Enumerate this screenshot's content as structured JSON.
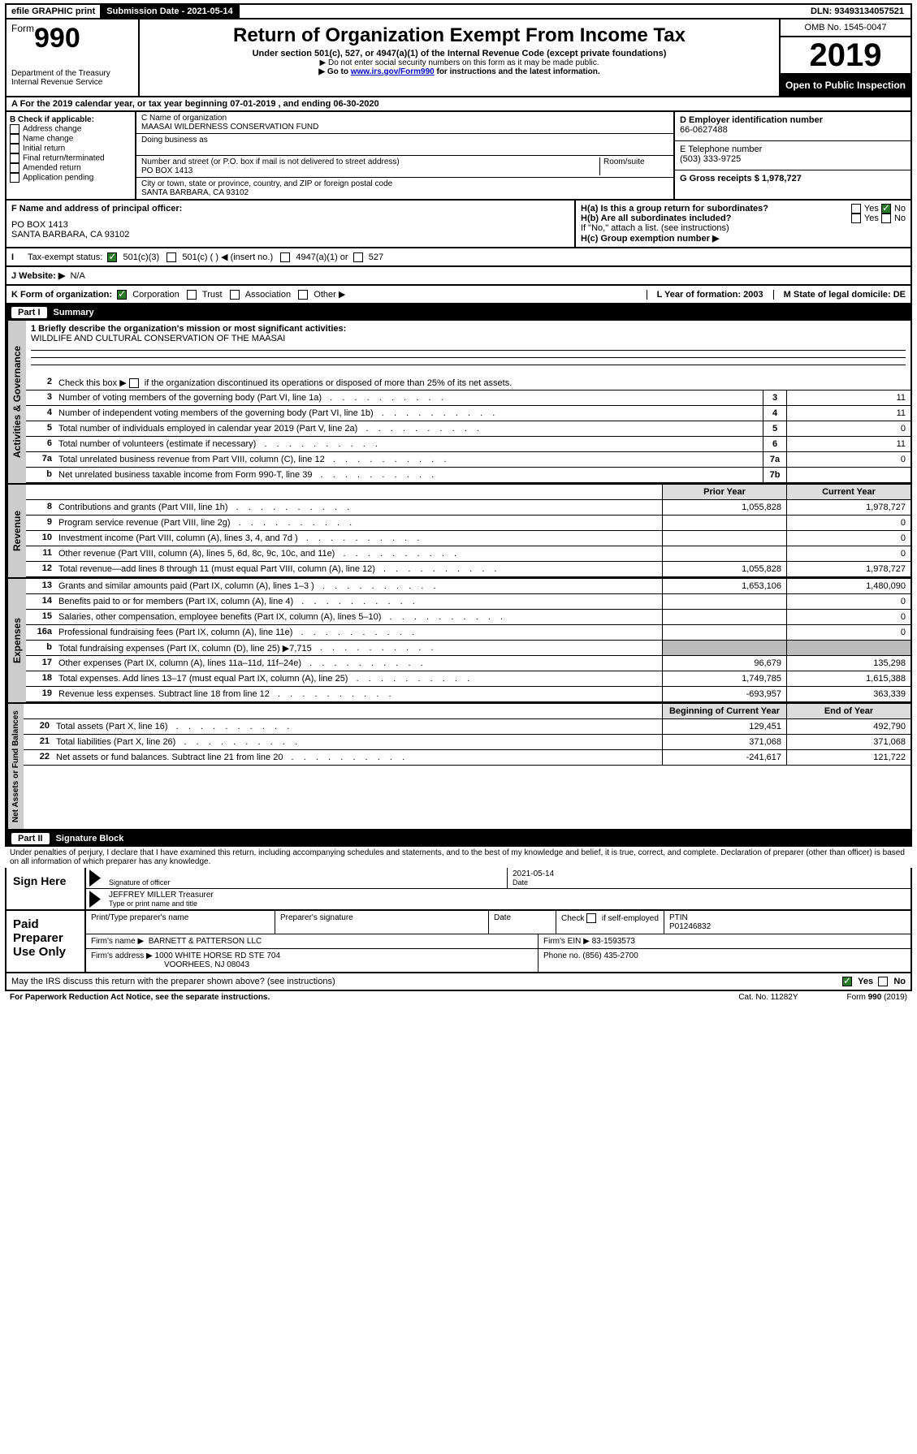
{
  "topbar": {
    "efile": "efile GRAPHIC print",
    "submission_label": "Submission Date - 2021-05-14",
    "dln": "DLN: 93493134057521"
  },
  "header": {
    "form_prefix": "Form",
    "form_number": "990",
    "dept": "Department of the Treasury",
    "irs": "Internal Revenue Service",
    "title": "Return of Organization Exempt From Income Tax",
    "subtitle": "Under section 501(c), 527, or 4947(a)(1) of the Internal Revenue Code (except private foundations)",
    "note1": "▶ Do not enter social security numbers on this form as it may be made public.",
    "note2_pre": "▶ Go to ",
    "note2_link": "www.irs.gov/Form990",
    "note2_post": " for instructions and the latest information.",
    "omb": "OMB No. 1545-0047",
    "year": "2019",
    "open": "Open to Public Inspection"
  },
  "row_a": "A For the 2019 calendar year, or tax year beginning 07-01-2019    , and ending 06-30-2020",
  "checkboxes_b": {
    "heading": "B Check if applicable:",
    "items": [
      "Address change",
      "Name change",
      "Initial return",
      "Final return/terminated",
      "Amended return",
      "Application pending"
    ]
  },
  "name_block": {
    "c_label": "C Name of organization",
    "org_name": "MAASAI WILDERNESS CONSERVATION FUND",
    "dba_label": "Doing business as",
    "addr_label": "Number and street (or P.O. box if mail is not delivered to street address)",
    "room_label": "Room/suite",
    "addr": "PO BOX 1413",
    "city_label": "City or town, state or province, country, and ZIP or foreign postal code",
    "city": "SANTA BARBARA, CA  93102"
  },
  "right_block": {
    "d_label": "D Employer identification number",
    "ein": "66-0627488",
    "e_label": "E Telephone number",
    "phone": "(503) 333-9725",
    "g_label": "G Gross receipts $ 1,978,727"
  },
  "fgh": {
    "f_label": "F Name and address of principal officer:",
    "f_addr1": "PO BOX 1413",
    "f_addr2": "SANTA BARBARA, CA  93102",
    "ha": "H(a)  Is this a group return for subordinates?",
    "hb": "H(b)  Are all subordinates included?",
    "hc": "H(c)  Group exemption number ▶",
    "yes": "Yes",
    "no": "No",
    "attach": "If \"No,\" attach a list. (see instructions)"
  },
  "row_i": {
    "label": "Tax-exempt status:",
    "opt1": "501(c)(3)",
    "opt2": "501(c) (  ) ◀ (insert no.)",
    "opt3": "4947(a)(1) or",
    "opt4": "527"
  },
  "row_j": {
    "label": "J   Website: ▶",
    "val": "N/A"
  },
  "row_k": {
    "label": "K Form of organization:",
    "opts": [
      "Corporation",
      "Trust",
      "Association",
      "Other ▶"
    ],
    "l": "L Year of formation: 2003",
    "m": "M State of legal domicile: DE"
  },
  "part1": {
    "title": "Part I",
    "name": "Summary",
    "line1_label": "1  Briefly describe the organization's mission or most significant activities:",
    "line1_val": "WILDLIFE AND CULTURAL CONSERVATION OF THE MAASAI",
    "line2": "Check this box ▶       if the organization discontinued its operations or disposed of more than 25% of its net assets.",
    "tabs": {
      "gov": "Activities & Governance",
      "rev": "Revenue",
      "exp": "Expenses",
      "net": "Net Assets or Fund Balances"
    },
    "table_header_prior": "Prior Year",
    "table_header_current": "Current Year",
    "table_header_begin": "Beginning of Current Year",
    "table_header_end": "End of Year",
    "lines_gov": [
      {
        "n": "3",
        "d": "Number of voting members of the governing body (Part VI, line 1a)",
        "box": "3",
        "v": "11"
      },
      {
        "n": "4",
        "d": "Number of independent voting members of the governing body (Part VI, line 1b)",
        "box": "4",
        "v": "11"
      },
      {
        "n": "5",
        "d": "Total number of individuals employed in calendar year 2019 (Part V, line 2a)",
        "box": "5",
        "v": "0"
      },
      {
        "n": "6",
        "d": "Total number of volunteers (estimate if necessary)",
        "box": "6",
        "v": "11"
      },
      {
        "n": "7a",
        "d": "Total unrelated business revenue from Part VIII, column (C), line 12",
        "box": "7a",
        "v": "0"
      },
      {
        "n": "b",
        "d": "Net unrelated business taxable income from Form 990-T, line 39",
        "box": "7b",
        "v": ""
      }
    ],
    "lines_rev": [
      {
        "n": "8",
        "d": "Contributions and grants (Part VIII, line 1h)",
        "p": "1,055,828",
        "c": "1,978,727"
      },
      {
        "n": "9",
        "d": "Program service revenue (Part VIII, line 2g)",
        "p": "",
        "c": "0"
      },
      {
        "n": "10",
        "d": "Investment income (Part VIII, column (A), lines 3, 4, and 7d )",
        "p": "",
        "c": "0"
      },
      {
        "n": "11",
        "d": "Other revenue (Part VIII, column (A), lines 5, 6d, 8c, 9c, 10c, and 11e)",
        "p": "",
        "c": "0"
      },
      {
        "n": "12",
        "d": "Total revenue—add lines 8 through 11 (must equal Part VIII, column (A), line 12)",
        "p": "1,055,828",
        "c": "1,978,727"
      }
    ],
    "lines_exp": [
      {
        "n": "13",
        "d": "Grants and similar amounts paid (Part IX, column (A), lines 1–3 )",
        "p": "1,653,106",
        "c": "1,480,090"
      },
      {
        "n": "14",
        "d": "Benefits paid to or for members (Part IX, column (A), line 4)",
        "p": "",
        "c": "0"
      },
      {
        "n": "15",
        "d": "Salaries, other compensation, employee benefits (Part IX, column (A), lines 5–10)",
        "p": "",
        "c": "0"
      },
      {
        "n": "16a",
        "d": "Professional fundraising fees (Part IX, column (A), line 11e)",
        "p": "",
        "c": "0"
      },
      {
        "n": "b",
        "d": "Total fundraising expenses (Part IX, column (D), line 25) ▶7,715",
        "p": "gray",
        "c": "gray"
      },
      {
        "n": "17",
        "d": "Other expenses (Part IX, column (A), lines 11a–11d, 11f–24e)",
        "p": "96,679",
        "c": "135,298"
      },
      {
        "n": "18",
        "d": "Total expenses. Add lines 13–17 (must equal Part IX, column (A), line 25)",
        "p": "1,749,785",
        "c": "1,615,388"
      },
      {
        "n": "19",
        "d": "Revenue less expenses. Subtract line 18 from line 12",
        "p": "-693,957",
        "c": "363,339"
      }
    ],
    "lines_net": [
      {
        "n": "20",
        "d": "Total assets (Part X, line 16)",
        "p": "129,451",
        "c": "492,790"
      },
      {
        "n": "21",
        "d": "Total liabilities (Part X, line 26)",
        "p": "371,068",
        "c": "371,068"
      },
      {
        "n": "22",
        "d": "Net assets or fund balances. Subtract line 21 from line 20",
        "p": "-241,617",
        "c": "121,722"
      }
    ]
  },
  "part2": {
    "title": "Part II",
    "name": "Signature Block",
    "perjury": "Under penalties of perjury, I declare that I have examined this return, including accompanying schedules and statements, and to the best of my knowledge and belief, it is true, correct, and complete. Declaration of preparer (other than officer) is based on all information of which preparer has any knowledge.",
    "sign_here": "Sign Here",
    "sig_officer": "Signature of officer",
    "date": "Date",
    "date_val": "2021-05-14",
    "officer": "JEFFREY MILLER  Treasurer",
    "type_name": "Type or print name and title",
    "paid": "Paid Preparer Use Only",
    "h_preparer": "Print/Type preparer's name",
    "h_sig": "Preparer's signature",
    "h_date": "Date",
    "h_check": "Check        if self-employed",
    "h_ptin": "PTIN",
    "ptin": "P01246832",
    "firm_name_label": "Firm's name     ▶",
    "firm_name": "BARNETT & PATTERSON LLC",
    "firm_ein_label": "Firm's EIN ▶",
    "firm_ein": "83-1593573",
    "firm_addr_label": "Firm's address ▶",
    "firm_addr1": "1000 WHITE HORSE RD STE 704",
    "firm_addr2": "VOORHEES, NJ  08043",
    "phone_label": "Phone no.",
    "phone": "(856) 435-2700",
    "discuss": "May the IRS discuss this return with the preparer shown above? (see instructions)"
  },
  "footer": {
    "pra": "For Paperwork Reduction Act Notice, see the separate instructions.",
    "cat": "Cat. No. 11282Y",
    "form": "Form 990 (2019)"
  }
}
